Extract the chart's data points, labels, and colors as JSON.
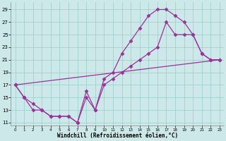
{
  "xlabel": "Windchill (Refroidissement éolien,°C)",
  "bg_color": "#cce8e8",
  "line_color": "#993399",
  "marker": "D",
  "markersize": 2.5,
  "linewidth": 0.9,
  "xlim": [
    -0.5,
    23.5
  ],
  "ylim": [
    10.5,
    30.2
  ],
  "xticks": [
    0,
    1,
    2,
    3,
    4,
    5,
    6,
    7,
    8,
    9,
    10,
    11,
    12,
    13,
    14,
    15,
    16,
    17,
    18,
    19,
    20,
    21,
    22,
    23
  ],
  "yticks": [
    11,
    13,
    15,
    17,
    19,
    21,
    23,
    25,
    27,
    29
  ],
  "grid_color": "#99cccc",
  "series": [
    {
      "x": [
        0,
        1,
        2,
        3,
        4,
        5,
        6,
        7,
        8,
        9,
        10,
        11,
        12,
        13,
        14,
        15,
        16,
        17,
        18,
        19,
        20,
        21,
        22,
        23
      ],
      "y": [
        17,
        15,
        13,
        13,
        12,
        12,
        12,
        11,
        16,
        13,
        18,
        19,
        22,
        24,
        26,
        28,
        29,
        29,
        28,
        27,
        25,
        22,
        21,
        21
      ]
    },
    {
      "x": [
        0,
        1,
        2,
        3,
        4,
        5,
        6,
        7,
        8,
        9,
        10,
        11,
        12,
        13,
        14,
        15,
        16,
        17,
        18,
        19,
        20,
        21,
        22,
        23
      ],
      "y": [
        17,
        15,
        14,
        13,
        12,
        12,
        12,
        11,
        15,
        13,
        17,
        18,
        19,
        20,
        21,
        22,
        23,
        27,
        25,
        25,
        25,
        22,
        21,
        21
      ]
    },
    {
      "x": [
        0,
        23
      ],
      "y": [
        17,
        21
      ]
    }
  ]
}
